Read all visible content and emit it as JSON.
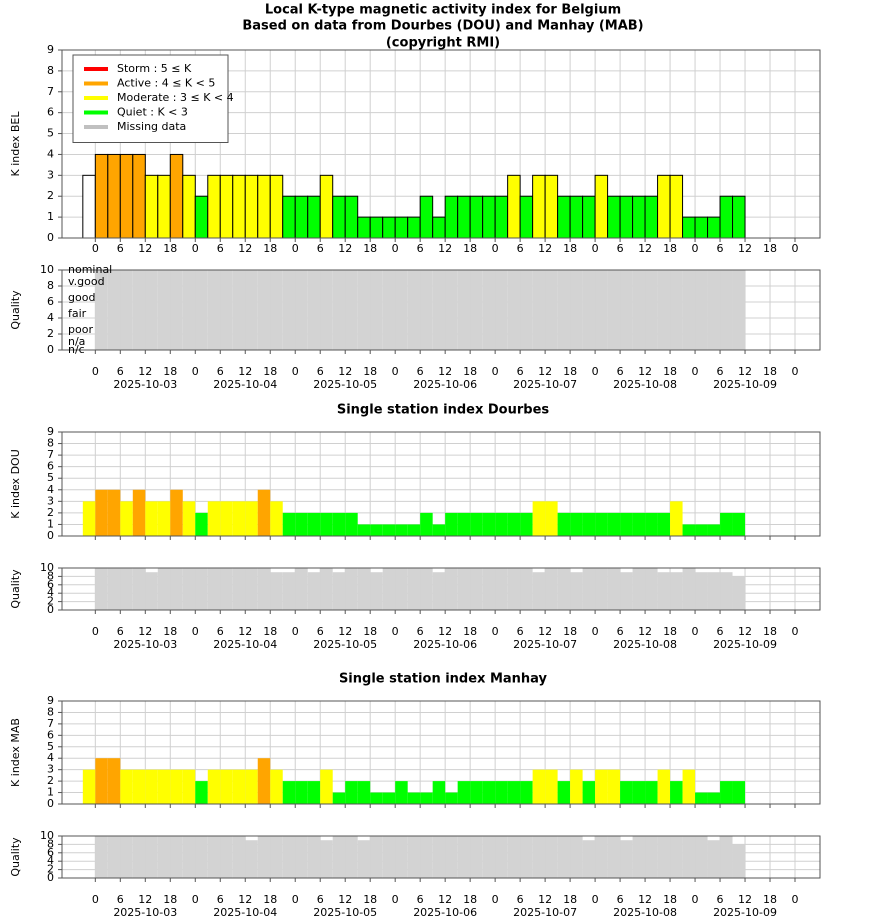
{
  "x_axis": {
    "xlim": [
      -8,
      174
    ],
    "xticks": [
      0,
      6,
      12,
      18,
      {
        "value": 24,
        "label": "0"
      },
      {
        "value": 30,
        "label": "6"
      },
      {
        "value": 36,
        "label": "12"
      },
      {
        "value": 42,
        "label": "18"
      },
      {
        "value": 48,
        "label": "0"
      },
      {
        "value": 54,
        "label": "6"
      },
      {
        "value": 60,
        "label": "12"
      },
      {
        "value": 66,
        "label": "18"
      },
      {
        "value": 72,
        "label": "0"
      },
      {
        "value": 78,
        "label": "6"
      },
      {
        "value": 84,
        "label": "12"
      },
      {
        "value": 90,
        "label": "18"
      },
      {
        "value": 96,
        "label": "0"
      },
      {
        "value": 102,
        "label": "6"
      },
      {
        "value": 108,
        "label": "12"
      },
      {
        "value": 114,
        "label": "18"
      },
      {
        "value": 120,
        "label": "0"
      },
      {
        "value": 126,
        "label": "6"
      },
      {
        "value": 132,
        "label": "12"
      },
      {
        "value": 138,
        "label": "18"
      },
      {
        "value": 144,
        "label": "0"
      },
      {
        "value": 150,
        "label": "6"
      },
      {
        "value": 156,
        "label": "12"
      },
      {
        "value": 162,
        "label": "18"
      },
      {
        "value": 168,
        "label": "0"
      }
    ],
    "dates": [
      {
        "value": 12,
        "label": "2025-10-03"
      },
      {
        "value": 36,
        "label": "2025-10-04"
      },
      {
        "value": 60,
        "label": "2025-10-05"
      },
      {
        "value": 84,
        "label": "2025-10-06"
      },
      {
        "value": 108,
        "label": "2025-10-07"
      },
      {
        "value": 132,
        "label": "2025-10-08"
      },
      {
        "value": 156,
        "label": "2025-10-09"
      }
    ]
  },
  "chart_data": [
    {
      "type": "bar",
      "title": "Local K-type magnetic activity index for Belgium",
      "subtitle": [
        "Based on data from Dourbes (DOU) and Manhay (MAB)",
        "(copyright RMI)"
      ],
      "ylabel": "K index BEL",
      "ylim": [
        0,
        9
      ],
      "yticks": [
        0,
        1,
        2,
        3,
        4,
        5,
        6,
        7,
        8,
        9
      ],
      "grid": true,
      "outline": true,
      "show_xticks": true,
      "legend": {
        "position": "upper left",
        "entries": [
          {
            "name": "Storm : 5 ≤ K",
            "color": "#ff0000"
          },
          {
            "name": "Active : 4 ≤ K < 5",
            "color": "#ffa500"
          },
          {
            "name": "Moderate : 3 ≤ K < 4",
            "color": "#ffff00"
          },
          {
            "name": "Quiet : K < 3",
            "color": "#00ff00"
          },
          {
            "name": "Missing data",
            "color": "#c0c0c0"
          }
        ]
      },
      "x": [
        -3,
        0,
        3,
        6,
        9,
        12,
        15,
        18,
        21,
        24,
        27,
        30,
        33,
        36,
        39,
        42,
        45,
        48,
        51,
        54,
        57,
        60,
        63,
        66,
        69,
        72,
        75,
        78,
        81,
        84,
        87,
        90,
        93,
        96,
        99,
        102,
        105,
        108,
        111,
        114,
        117,
        120,
        123,
        126,
        129,
        132,
        135,
        138,
        141,
        144,
        147,
        150,
        153
      ],
      "values": [
        3,
        4,
        4,
        4,
        4,
        3,
        3,
        4,
        3,
        2,
        3,
        3,
        3,
        3,
        3,
        3,
        2,
        2,
        2,
        3,
        2,
        2,
        1,
        1,
        1,
        1,
        1,
        2,
        1,
        2,
        2,
        2,
        2,
        2,
        3,
        2,
        3,
        3,
        2,
        2,
        2,
        3,
        2,
        2,
        2,
        2,
        3,
        3,
        1,
        1,
        1,
        2,
        2
      ],
      "colors": [
        "#ffffff",
        "#ffa500",
        "#ffa500",
        "#ffa500",
        "#ffa500",
        "#ffff00",
        "#ffff00",
        "#ffa500",
        "#ffff00",
        "#00ff00",
        "#ffff00",
        "#ffff00",
        "#ffff00",
        "#ffff00",
        "#ffff00",
        "#ffff00",
        "#00ff00",
        "#00ff00",
        "#00ff00",
        "#ffff00",
        "#00ff00",
        "#00ff00",
        "#00ff00",
        "#00ff00",
        "#00ff00",
        "#00ff00",
        "#00ff00",
        "#00ff00",
        "#00ff00",
        "#00ff00",
        "#00ff00",
        "#00ff00",
        "#00ff00",
        "#00ff00",
        "#ffff00",
        "#00ff00",
        "#ffff00",
        "#ffff00",
        "#00ff00",
        "#00ff00",
        "#00ff00",
        "#ffff00",
        "#00ff00",
        "#00ff00",
        "#00ff00",
        "#00ff00",
        "#ffff00",
        "#ffff00",
        "#00ff00",
        "#00ff00",
        "#00ff00",
        "#00ff00",
        "#00ff00"
      ]
    },
    {
      "type": "bar",
      "ylabel": "Quality",
      "ylim": [
        0,
        10
      ],
      "yticks": [
        0,
        2,
        4,
        6,
        8,
        10
      ],
      "grid": true,
      "show_xticks": true,
      "show_dates": true,
      "color": "#d3d3d3",
      "quality_labels": [
        {
          "value": 10,
          "label": "nominal"
        },
        {
          "value": 8.5,
          "label": "v.good"
        },
        {
          "value": 6.5,
          "label": "good"
        },
        {
          "value": 4.5,
          "label": "fair"
        },
        {
          "value": 2.5,
          "label": "poor"
        },
        {
          "value": 1,
          "label": "n/a"
        },
        {
          "value": 0,
          "label": "n/c"
        }
      ],
      "x": [
        0,
        3,
        6,
        9,
        12,
        15,
        18,
        21,
        24,
        27,
        30,
        33,
        36,
        39,
        42,
        45,
        48,
        51,
        54,
        57,
        60,
        63,
        66,
        69,
        72,
        75,
        78,
        81,
        84,
        87,
        90,
        93,
        96,
        99,
        102,
        105,
        108,
        111,
        114,
        117,
        120,
        123,
        126,
        129,
        132,
        135,
        138,
        141,
        144,
        147,
        150,
        153
      ],
      "values": [
        10,
        10,
        10,
        10,
        10,
        10,
        10,
        10,
        10,
        10,
        10,
        10,
        10,
        10,
        10,
        10,
        10,
        10,
        10,
        10,
        10,
        10,
        10,
        10,
        10,
        10,
        10,
        10,
        10,
        10,
        10,
        10,
        10,
        10,
        10,
        10,
        10,
        10,
        10,
        10,
        10,
        10,
        10,
        10,
        10,
        10,
        10,
        10,
        10,
        10,
        10,
        10
      ]
    },
    {
      "type": "bar",
      "title": "Single station index Dourbes",
      "ylabel": "K index DOU",
      "ylim": [
        0,
        9
      ],
      "yticks": [
        0,
        1,
        2,
        3,
        4,
        5,
        6,
        7,
        8,
        9
      ],
      "grid": true,
      "x": [
        -3,
        0,
        3,
        6,
        9,
        12,
        15,
        18,
        21,
        24,
        27,
        30,
        33,
        36,
        39,
        42,
        45,
        48,
        51,
        54,
        57,
        60,
        63,
        66,
        69,
        72,
        75,
        78,
        81,
        84,
        87,
        90,
        93,
        96,
        99,
        102,
        105,
        108,
        111,
        114,
        117,
        120,
        123,
        126,
        129,
        132,
        135,
        138,
        141,
        144,
        147,
        150,
        153
      ],
      "values": [
        3,
        4,
        4,
        3,
        4,
        3,
        3,
        4,
        3,
        2,
        3,
        3,
        3,
        3,
        4,
        3,
        2,
        2,
        2,
        2,
        2,
        2,
        1,
        1,
        1,
        1,
        1,
        2,
        1,
        2,
        2,
        2,
        2,
        2,
        2,
        2,
        3,
        3,
        2,
        2,
        2,
        2,
        2,
        2,
        2,
        2,
        2,
        3,
        1,
        1,
        1,
        2,
        2
      ],
      "colors": [
        "#ffff00",
        "#ffa500",
        "#ffa500",
        "#ffff00",
        "#ffa500",
        "#ffff00",
        "#ffff00",
        "#ffa500",
        "#ffff00",
        "#00ff00",
        "#ffff00",
        "#ffff00",
        "#ffff00",
        "#ffff00",
        "#ffa500",
        "#ffff00",
        "#00ff00",
        "#00ff00",
        "#00ff00",
        "#00ff00",
        "#00ff00",
        "#00ff00",
        "#00ff00",
        "#00ff00",
        "#00ff00",
        "#00ff00",
        "#00ff00",
        "#00ff00",
        "#00ff00",
        "#00ff00",
        "#00ff00",
        "#00ff00",
        "#00ff00",
        "#00ff00",
        "#00ff00",
        "#00ff00",
        "#ffff00",
        "#ffff00",
        "#00ff00",
        "#00ff00",
        "#00ff00",
        "#00ff00",
        "#00ff00",
        "#00ff00",
        "#00ff00",
        "#00ff00",
        "#00ff00",
        "#ffff00",
        "#00ff00",
        "#00ff00",
        "#00ff00",
        "#00ff00",
        "#00ff00"
      ]
    },
    {
      "type": "bar",
      "ylabel": "Quality",
      "ylim": [
        0,
        10
      ],
      "yticks": [
        0,
        2,
        4,
        6,
        8,
        10
      ],
      "grid": true,
      "show_xticks": true,
      "show_dates": true,
      "color": "#d3d3d3",
      "x": [
        0,
        3,
        6,
        9,
        12,
        15,
        18,
        21,
        24,
        27,
        30,
        33,
        36,
        39,
        42,
        45,
        48,
        51,
        54,
        57,
        60,
        63,
        66,
        69,
        72,
        75,
        78,
        81,
        84,
        87,
        90,
        93,
        96,
        99,
        102,
        105,
        108,
        111,
        114,
        117,
        120,
        123,
        126,
        129,
        132,
        135,
        138,
        141,
        144,
        147,
        150,
        153
      ],
      "values": [
        10,
        10,
        10,
        10,
        9,
        10,
        10,
        10,
        10,
        10,
        10,
        10,
        10,
        10,
        9,
        9,
        10,
        9,
        10,
        9,
        10,
        10,
        9,
        10,
        10,
        10,
        10,
        9,
        10,
        10,
        10,
        10,
        10,
        10,
        10,
        9,
        10,
        10,
        9,
        10,
        10,
        10,
        9,
        10,
        10,
        9,
        9,
        10,
        9,
        9,
        9,
        8
      ]
    },
    {
      "type": "bar",
      "title": "Single station index Manhay",
      "ylabel": "K index MAB",
      "ylim": [
        0,
        9
      ],
      "yticks": [
        0,
        1,
        2,
        3,
        4,
        5,
        6,
        7,
        8,
        9
      ],
      "grid": true,
      "x": [
        -3,
        0,
        3,
        6,
        9,
        12,
        15,
        18,
        21,
        24,
        27,
        30,
        33,
        36,
        39,
        42,
        45,
        48,
        51,
        54,
        57,
        60,
        63,
        66,
        69,
        72,
        75,
        78,
        81,
        84,
        87,
        90,
        93,
        96,
        99,
        102,
        105,
        108,
        111,
        114,
        117,
        120,
        123,
        126,
        129,
        132,
        135,
        138,
        141,
        144,
        147,
        150,
        153
      ],
      "values": [
        3,
        4,
        4,
        3,
        3,
        3,
        3,
        3,
        3,
        2,
        3,
        3,
        3,
        3,
        4,
        3,
        2,
        2,
        2,
        3,
        1,
        2,
        2,
        1,
        1,
        2,
        1,
        1,
        2,
        1,
        2,
        2,
        2,
        2,
        2,
        2,
        3,
        3,
        2,
        3,
        2,
        3,
        3,
        2,
        2,
        2,
        3,
        2,
        3,
        1,
        1,
        2,
        2
      ],
      "colors": [
        "#ffff00",
        "#ffa500",
        "#ffa500",
        "#ffff00",
        "#ffff00",
        "#ffff00",
        "#ffff00",
        "#ffff00",
        "#ffff00",
        "#00ff00",
        "#ffff00",
        "#ffff00",
        "#ffff00",
        "#ffff00",
        "#ffa500",
        "#ffff00",
        "#00ff00",
        "#00ff00",
        "#00ff00",
        "#ffff00",
        "#00ff00",
        "#00ff00",
        "#00ff00",
        "#00ff00",
        "#00ff00",
        "#00ff00",
        "#00ff00",
        "#00ff00",
        "#00ff00",
        "#00ff00",
        "#00ff00",
        "#00ff00",
        "#00ff00",
        "#00ff00",
        "#00ff00",
        "#00ff00",
        "#ffff00",
        "#ffff00",
        "#00ff00",
        "#ffff00",
        "#00ff00",
        "#ffff00",
        "#ffff00",
        "#00ff00",
        "#00ff00",
        "#00ff00",
        "#ffff00",
        "#00ff00",
        "#ffff00",
        "#00ff00",
        "#00ff00",
        "#00ff00",
        "#00ff00"
      ]
    },
    {
      "type": "bar",
      "ylabel": "Quality",
      "ylim": [
        0,
        10
      ],
      "yticks": [
        0,
        2,
        4,
        6,
        8,
        10
      ],
      "grid": true,
      "show_xticks": true,
      "show_dates": true,
      "color": "#d3d3d3",
      "x": [
        0,
        3,
        6,
        9,
        12,
        15,
        18,
        21,
        24,
        27,
        30,
        33,
        36,
        39,
        42,
        45,
        48,
        51,
        54,
        57,
        60,
        63,
        66,
        69,
        72,
        75,
        78,
        81,
        84,
        87,
        90,
        93,
        96,
        99,
        102,
        105,
        108,
        111,
        114,
        117,
        120,
        123,
        126,
        129,
        132,
        135,
        138,
        141,
        144,
        147,
        150,
        153
      ],
      "values": [
        10,
        10,
        10,
        10,
        10,
        10,
        10,
        10,
        10,
        10,
        10,
        10,
        9,
        10,
        10,
        10,
        10,
        10,
        9,
        10,
        10,
        9,
        10,
        10,
        10,
        10,
        10,
        10,
        10,
        10,
        10,
        10,
        10,
        10,
        10,
        10,
        10,
        10,
        10,
        9,
        10,
        10,
        9,
        10,
        10,
        10,
        10,
        10,
        10,
        9,
        10,
        8
      ]
    }
  ]
}
